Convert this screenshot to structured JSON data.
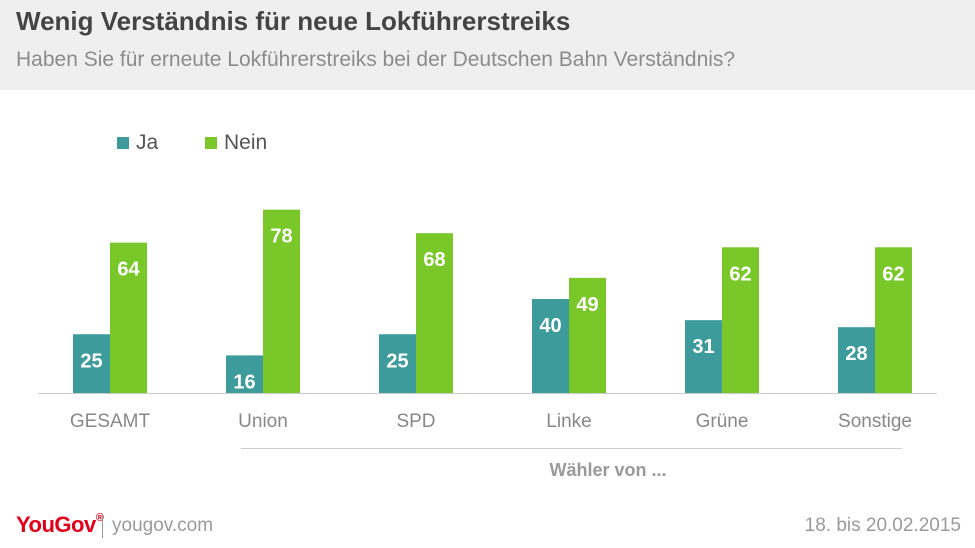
{
  "header": {
    "title": "Wenig Verständnis für neue Lokführerstreiks",
    "subtitle": "Haben Sie für erneute Lokführerstreiks bei der Deutschen Bahn Verständnis?"
  },
  "colors": {
    "ja": "#3d9b9c",
    "nein": "#7ac72a",
    "header_bg": "#efefef",
    "brand_red": "#e2001a"
  },
  "chart_data": {
    "type": "bar",
    "title": "Wenig Verständnis für neue Lokführerstreiks",
    "subtitle": "Haben Sie für erneute Lokführerstreiks bei der Deutschen Bahn Verständnis?",
    "categories": [
      "GESAMT",
      "Union",
      "SPD",
      "Linke",
      "Grüne",
      "Sonstige"
    ],
    "series": [
      {
        "name": "Ja",
        "values": [
          25,
          16,
          25,
          40,
          31,
          28
        ]
      },
      {
        "name": "Nein",
        "values": [
          64,
          78,
          68,
          49,
          62,
          62
        ]
      }
    ],
    "group_label": "Wähler von ...",
    "ylim": [
      0,
      80
    ],
    "grid": false,
    "legend": "top-left"
  },
  "footer": {
    "brand": "YouGov",
    "brand_mark": "®",
    "url": "yougov.com",
    "date": "18. bis 20.02.2015"
  }
}
